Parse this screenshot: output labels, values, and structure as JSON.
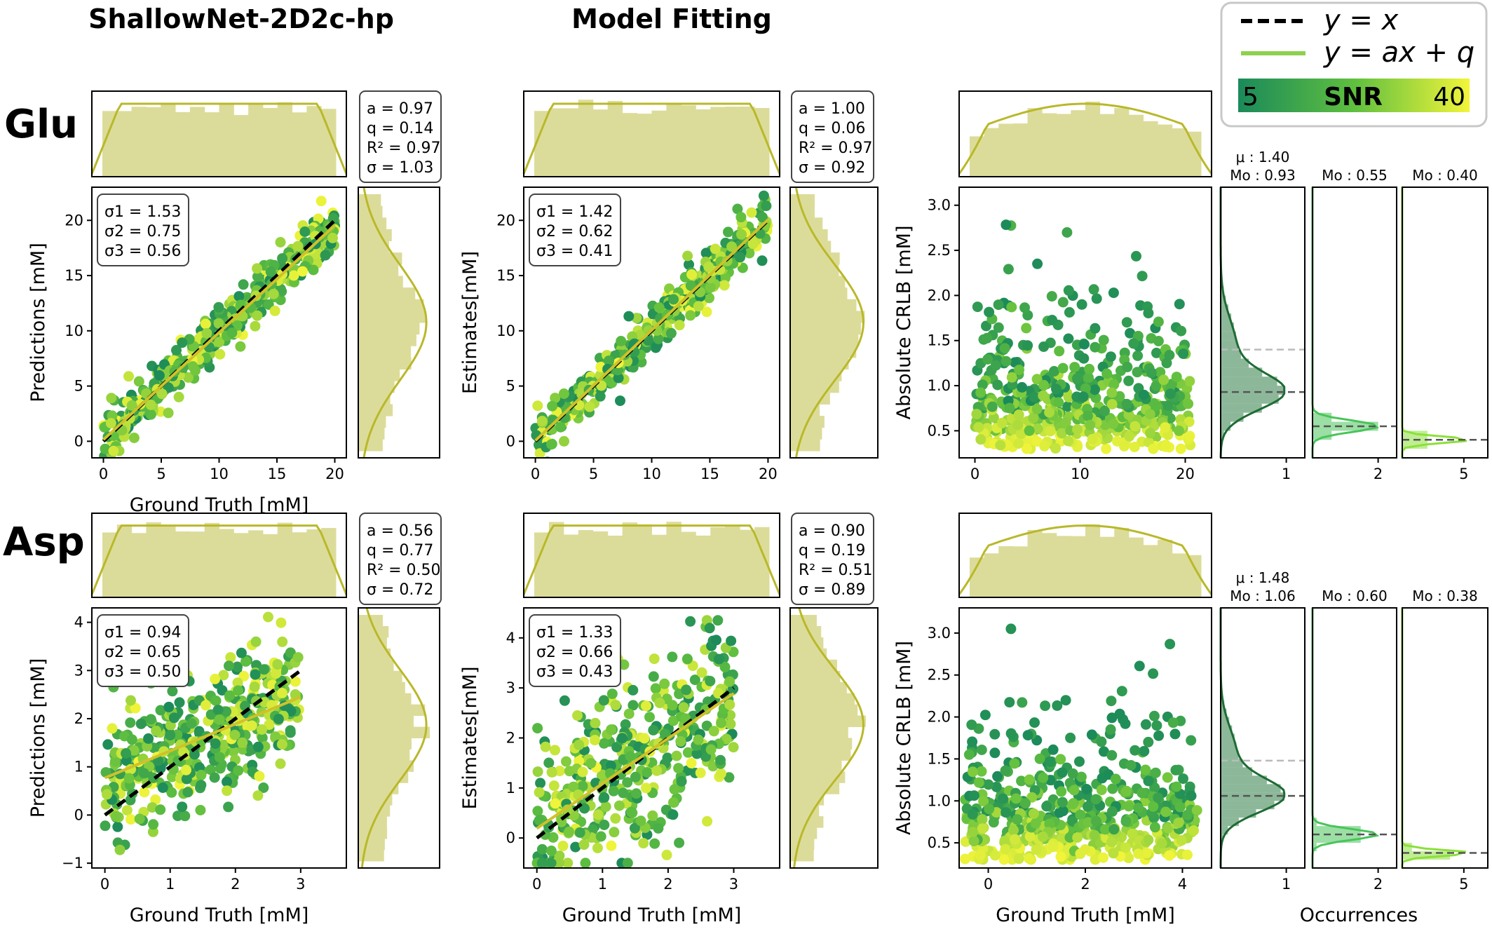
{
  "figure": {
    "column_titles": [
      "ShallowNet-2D2c-hp",
      "Model Fitting"
    ],
    "row_labels": [
      "Glu",
      "Asp"
    ],
    "legend": {
      "identity_label": "y = x",
      "fit_label": "y = ax + q",
      "colorbar_label": "SNR",
      "colorbar_min": "5",
      "colorbar_max": "40",
      "colors": {
        "dark": "#1b8a5a",
        "mid": "#5fbf3f",
        "light": "#f2f53a"
      }
    },
    "x_labels": {
      "prediction": "Ground Truth [mM]",
      "crlb": "Ground Truth [mM]",
      "occurrences": "Occurrences"
    },
    "y_labels": {
      "prediction": "Predictions [mM]",
      "estimates": "Estimates[mM]",
      "crlb": "Absolute CRLB [mM]"
    },
    "colors": {
      "hist": "#dcdc9a",
      "kde": "#b9b82a",
      "identity": "#000000",
      "fit": "#cfc12a",
      "hist_dark": "#2d7d46",
      "hist_mid": "#48c45a",
      "hist_light": "#8be03a"
    }
  },
  "chart_data": [
    {
      "type": "scatter",
      "id": "glu-shallownet",
      "metabolite": "Glu",
      "method": "ShallowNet-2D2c-hp",
      "xlabel": "Ground Truth [mM]",
      "ylabel": "Predictions [mM]",
      "xlim": [
        -1,
        21
      ],
      "ylim": [
        -1.5,
        23
      ],
      "xticks": [
        "0",
        "5",
        "10",
        "15",
        "20"
      ],
      "yticks": [
        "0",
        "5",
        "10",
        "15",
        "20"
      ],
      "fit": {
        "a": 0.97,
        "q": 0.14
      },
      "stats_box": [
        "a = 0.97",
        "q = 0.14",
        "R² = 0.97",
        "σ = 1.03"
      ],
      "sigma_box": [
        "σ1 = 1.53",
        "σ2 = 0.75",
        "σ3 = 0.56"
      ]
    },
    {
      "type": "scatter",
      "id": "glu-fitting",
      "metabolite": "Glu",
      "method": "Model Fitting",
      "xlabel": "",
      "ylabel": "Estimates[mM]",
      "xlim": [
        -1,
        21
      ],
      "ylim": [
        -1.5,
        23
      ],
      "xticks": [
        "0",
        "5",
        "10",
        "15",
        "20"
      ],
      "yticks": [
        "0",
        "5",
        "10",
        "15",
        "20"
      ],
      "fit": {
        "a": 1.0,
        "q": 0.06
      },
      "stats_box": [
        "a = 1.00",
        "q = 0.06",
        "R² = 0.97",
        "σ = 0.92"
      ],
      "sigma_box": [
        "σ1 = 1.42",
        "σ2 = 0.62",
        "σ3 = 0.41"
      ]
    },
    {
      "type": "scatter",
      "id": "glu-crlb",
      "metabolite": "Glu",
      "xlabel": "",
      "ylabel": "Absolute CRLB [mM]",
      "xlim": [
        -1.5,
        22.5
      ],
      "ylim": [
        0.2,
        3.2
      ],
      "xticks": [
        "0",
        "10",
        "20"
      ],
      "yticks": [
        "0.5",
        "1.0",
        "1.5",
        "2.0",
        "2.5",
        "3.0"
      ],
      "snr_histograms": [
        {
          "labels": [
            "μ : 1.40",
            "Mo : 0.93"
          ],
          "mean": 1.4,
          "mode": 0.93,
          "xtick": "1"
        },
        {
          "labels": [
            "Mo : 0.55"
          ],
          "mode": 0.55,
          "xtick": "2"
        },
        {
          "labels": [
            "Mo : 0.40"
          ],
          "mode": 0.4,
          "xtick": "5"
        }
      ]
    },
    {
      "type": "scatter",
      "id": "asp-shallownet",
      "metabolite": "Asp",
      "method": "ShallowNet-2D2c-hp",
      "xlabel": "Ground Truth [mM]",
      "ylabel": "Predictions [mM]",
      "xlim": [
        -0.2,
        3.7
      ],
      "ylim": [
        -1.1,
        4.3
      ],
      "xticks": [
        "0",
        "1",
        "2",
        "3"
      ],
      "yticks": [
        "−1",
        "0",
        "1",
        "2",
        "3",
        "4"
      ],
      "fit": {
        "a": 0.56,
        "q": 0.77
      },
      "stats_box": [
        "a = 0.56",
        "q = 0.77",
        "R² = 0.50",
        "σ = 0.72"
      ],
      "sigma_box": [
        "σ1 = 0.94",
        "σ2 = 0.65",
        "σ3 = 0.50"
      ]
    },
    {
      "type": "scatter",
      "id": "asp-fitting",
      "metabolite": "Asp",
      "method": "Model Fitting",
      "xlabel": "Ground Truth [mM]",
      "ylabel": "Estimates[mM]",
      "xlim": [
        -0.2,
        3.7
      ],
      "ylim": [
        -0.6,
        4.6
      ],
      "xticks": [
        "0",
        "1",
        "2",
        "3"
      ],
      "yticks": [
        "0",
        "1",
        "2",
        "3",
        "4"
      ],
      "fit": {
        "a": 0.9,
        "q": 0.19
      },
      "stats_box": [
        "a = 0.90",
        "q = 0.19",
        "R² = 0.51",
        "σ = 0.89"
      ],
      "sigma_box": [
        "σ1 = 1.33",
        "σ2 = 0.66",
        "σ3 = 0.43"
      ]
    },
    {
      "type": "scatter",
      "id": "asp-crlb",
      "metabolite": "Asp",
      "xlabel": "Ground Truth [mM]",
      "ylabel": "Absolute CRLB [mM]",
      "xlim": [
        -0.6,
        4.6
      ],
      "ylim": [
        0.2,
        3.3
      ],
      "xticks": [
        "0",
        "2",
        "4"
      ],
      "yticks": [
        "0.5",
        "1.0",
        "1.5",
        "2.0",
        "2.5",
        "3.0"
      ],
      "snr_histograms": [
        {
          "labels": [
            "μ : 1.48",
            "Mo : 1.06"
          ],
          "mean": 1.48,
          "mode": 1.06,
          "xtick": "1"
        },
        {
          "labels": [
            "Mo : 0.60"
          ],
          "mode": 0.6,
          "xtick": "2"
        },
        {
          "labels": [
            "Mo : 0.38"
          ],
          "mode": 0.38,
          "xtick": "5"
        }
      ]
    }
  ]
}
